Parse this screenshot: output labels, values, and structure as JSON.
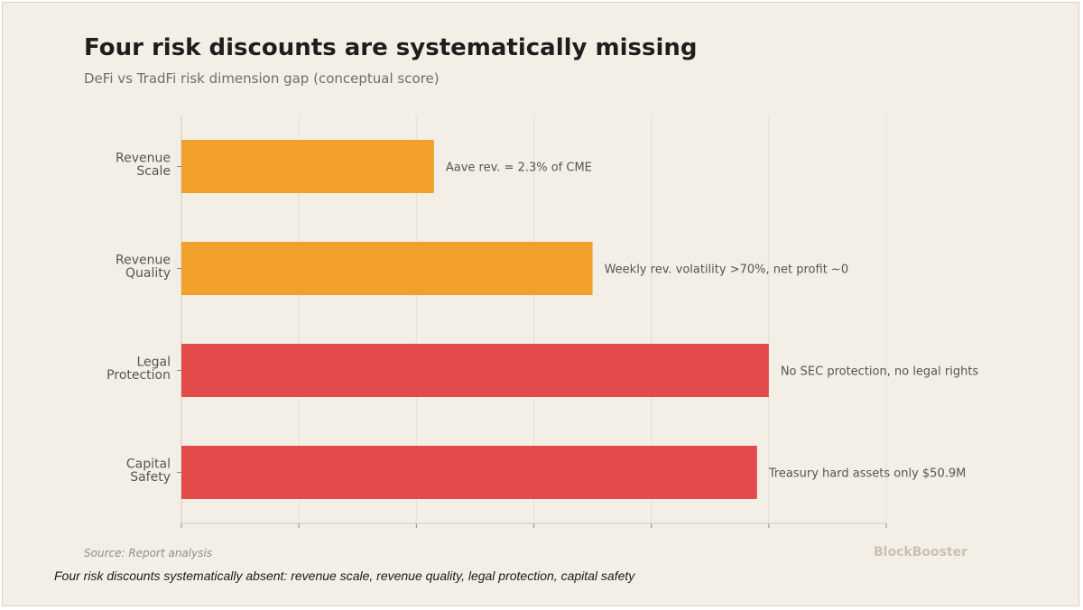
{
  "chart_data": {
    "type": "bar",
    "orientation": "horizontal",
    "title": "Four risk discounts are systematically missing",
    "subtitle": "DeFi vs TradFi risk dimension gap (conceptual score)",
    "categories": [
      "Revenue Scale",
      "Revenue Quality",
      "Legal Protection",
      "Capital Safety"
    ],
    "values": [
      43,
      70,
      100,
      98
    ],
    "annotations": [
      "Aave rev. = 2.3% of CME",
      "Weekly rev. volatility >70%, net profit ~0",
      "No SEC protection, no legal rights",
      "Treasury hard assets only $50.9M"
    ],
    "bar_colors": [
      "#f0a02b",
      "#f0a02b",
      "#e34a4a",
      "#e34a4a"
    ],
    "xlim": [
      0,
      120
    ],
    "x_tick_count": 7,
    "x_tick_labels_shown": false,
    "grid": "vertical",
    "legend": "none",
    "xlabel": "",
    "ylabel": ""
  },
  "source": "Source: Report analysis",
  "brand": "BlockBooster",
  "caption": "Four risk discounts systematically absent: revenue scale, revenue quality, legal protection, capital safety",
  "colors": {
    "background": "#f3efe6",
    "grid": "#e4dfd3",
    "axis": "#d7d1c3",
    "label": "#555555",
    "annotation": "#555555"
  }
}
